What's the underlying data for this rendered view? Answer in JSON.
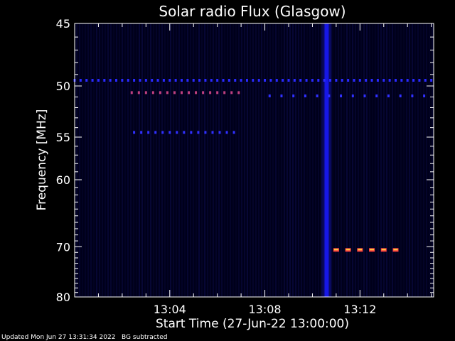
{
  "footer": {
    "updated": "Updated Mon Jun 27 13:31:34 2022",
    "note": "BG subtracted"
  },
  "chart_data": {
    "type": "heatmap",
    "title": "Solar radio Flux (Glasgow)",
    "xlabel": "Start Time (27-Jun-22 13:00:00)",
    "ylabel": "Frequency [MHz]",
    "x_unit": "minutes after 13:00:00",
    "xlim": [
      0,
      15.1
    ],
    "ylim": [
      80,
      45
    ],
    "y_scale": "reciprocal",
    "x_ticks": [
      {
        "value": 4,
        "label": "13:04"
      },
      {
        "value": 8,
        "label": "13:08"
      },
      {
        "value": 12,
        "label": "13:12"
      }
    ],
    "y_ticks": [
      {
        "value": 45,
        "label": "45"
      },
      {
        "value": 50,
        "label": "50"
      },
      {
        "value": 55,
        "label": "55"
      },
      {
        "value": 60,
        "label": "60"
      },
      {
        "value": 70,
        "label": "70"
      },
      {
        "value": 80,
        "label": "80"
      }
    ],
    "background_color": "#00001a",
    "features": {
      "vertical_burst": {
        "x": 10.6,
        "color": "#1a1aff"
      },
      "dotted_bands": [
        {
          "freq": 49.5,
          "x_from": 0,
          "x_to": 15.1,
          "step": 0.25,
          "color": "#2a2aff"
        },
        {
          "freq": 50.6,
          "x_from": 2.4,
          "x_to": 6.9,
          "step": 0.3,
          "color": "#c04080"
        },
        {
          "freq": 50.9,
          "x_from": 8.2,
          "x_to": 15.1,
          "step": 0.5,
          "color": "#3030ff"
        },
        {
          "freq": 54.5,
          "x_from": 2.5,
          "x_to": 6.9,
          "step": 0.3,
          "color": "#3030ff"
        }
      ],
      "hot_band": {
        "freq": 70.5,
        "x_from": 11.0,
        "x_to": 13.7,
        "step": 0.5,
        "color": "#ff4040"
      }
    }
  }
}
